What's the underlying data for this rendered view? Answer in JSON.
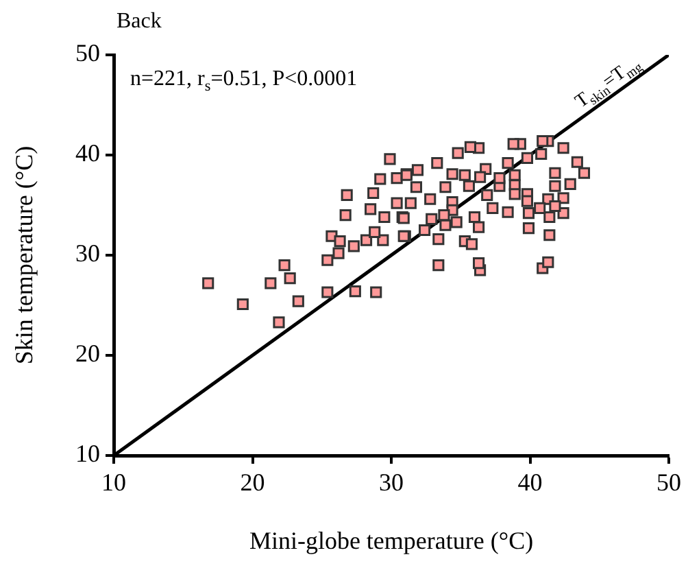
{
  "chart_data": {
    "type": "scatter",
    "title": "Back",
    "xlabel": "Mini-globe temperature (°C)",
    "ylabel": "Skin temperature (°C)",
    "annotations": [
      "n=221, r$_{s}$=0.51, P<0.0001",
      {
        "text": "T$_{skin}$=T$_{mg}$",
        "x": 44,
        "y": 44
      }
    ],
    "xlim": [
      10,
      50
    ],
    "xticks": [
      10,
      20,
      30,
      40,
      50
    ],
    "ylim": [
      10,
      50
    ],
    "yticks": [
      10,
      20,
      30,
      40,
      50
    ],
    "grid": false,
    "legend": false,
    "series": [
      {
        "type": "line",
        "color": "#000000",
        "marker": "none",
        "x": [
          10,
          50
        ],
        "values": [
          10,
          50
        ]
      },
      {
        "color": "#ff9999",
        "marker": "square",
        "x": [
          16.8,
          19.3,
          21.9,
          21.3,
          22.3,
          22.7,
          23.3,
          25.4,
          25.4,
          26.2,
          25.7,
          26.3,
          27.3,
          27.4,
          28.9,
          26.7,
          26.8,
          28.2,
          29.4,
          28.7,
          29.2,
          29.9,
          28.5,
          28.8,
          29.5,
          30.4,
          30.4,
          30.8,
          31.0,
          31.1,
          33.4,
          36.4,
          36.3,
          40.9,
          41.3,
          33.4,
          35.3,
          35.8,
          32.4,
          33.9,
          34.7,
          36.3,
          36.0,
          38.4,
          39.9,
          41.4,
          41.4,
          42.4,
          39.9,
          37.3,
          30.9,
          30.9,
          32.9,
          32.8,
          34.4,
          36.9,
          37.8,
          38.9,
          39.8,
          41.8,
          42.4,
          42.9,
          43.9,
          43.4,
          42.4,
          41.3,
          40.9,
          39.3,
          38.8,
          39.8,
          40.8,
          41.8,
          38.4,
          38.9,
          37.8,
          36.8,
          36.3,
          35.7,
          34.8,
          33.3,
          34.4,
          36.4,
          35.3,
          33.9,
          35.6,
          31.9,
          31.1,
          31.8,
          31.4,
          34.4,
          33.8,
          38.9,
          39.8,
          41.3,
          41.8,
          40.7
        ],
        "values": [
          27.2,
          25.1,
          23.3,
          27.2,
          29.0,
          27.7,
          25.4,
          26.3,
          29.5,
          30.2,
          31.9,
          31.4,
          30.9,
          26.4,
          26.3,
          34.0,
          36.0,
          31.5,
          31.5,
          36.2,
          37.6,
          39.6,
          34.6,
          32.3,
          33.8,
          37.7,
          35.2,
          33.8,
          31.9,
          38.1,
          29.0,
          28.5,
          29.2,
          28.7,
          29.3,
          31.6,
          31.4,
          31.1,
          32.5,
          33.0,
          33.3,
          32.8,
          33.8,
          34.3,
          32.7,
          32.0,
          33.8,
          34.2,
          34.2,
          34.7,
          33.7,
          31.9,
          33.6,
          35.6,
          35.3,
          36.0,
          36.9,
          37.0,
          36.1,
          36.9,
          35.7,
          37.1,
          38.2,
          39.3,
          40.7,
          41.4,
          41.4,
          41.1,
          41.1,
          39.7,
          40.1,
          38.2,
          39.2,
          38.0,
          37.7,
          38.6,
          40.7,
          40.8,
          40.2,
          39.2,
          38.1,
          37.8,
          38.0,
          36.8,
          36.9,
          38.5,
          38.0,
          36.8,
          35.2,
          34.5,
          34.0,
          36.1,
          35.4,
          35.6,
          34.9,
          34.7
        ]
      }
    ]
  }
}
